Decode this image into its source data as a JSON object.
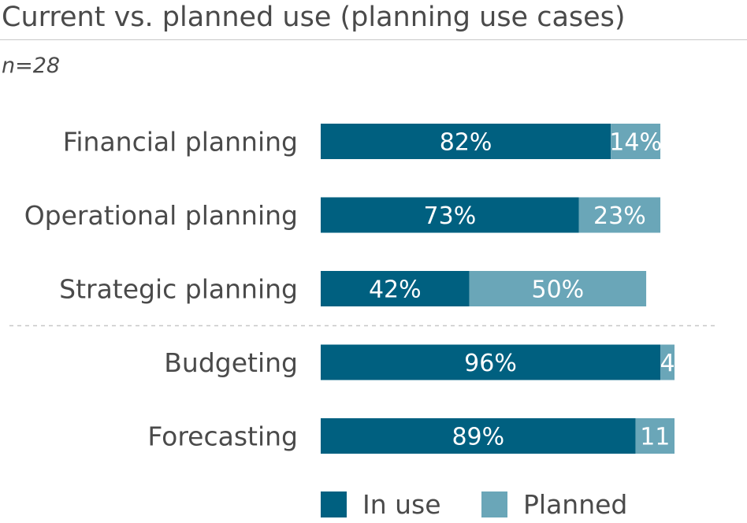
{
  "title": "Current vs. planned use (planning use cases)",
  "subtitle": "n=28",
  "colors": {
    "in_use": "#006080",
    "planned": "#6aa6b8",
    "label": "#ffffff",
    "text": "#4a4a4a",
    "divider": "#c8c8c8"
  },
  "chart_data": {
    "type": "bar",
    "orientation": "horizontal",
    "stacked": true,
    "categories": [
      "Financial planning",
      "Operational planning",
      "Strategic planning",
      "Budgeting",
      "Forecasting"
    ],
    "series": [
      {
        "name": "In use",
        "values": [
          82,
          73,
          42,
          96,
          89
        ],
        "labels": [
          "82%",
          "73%",
          "42%",
          "96%",
          "89%"
        ]
      },
      {
        "name": "Planned",
        "values": [
          14,
          23,
          50,
          4,
          11
        ],
        "labels": [
          "14%",
          "23%",
          "50%",
          "4",
          "11"
        ]
      }
    ],
    "xlim": [
      0,
      100
    ],
    "grid": false,
    "legend_position": "bottom",
    "divider_after_category": "Operational planning"
  }
}
